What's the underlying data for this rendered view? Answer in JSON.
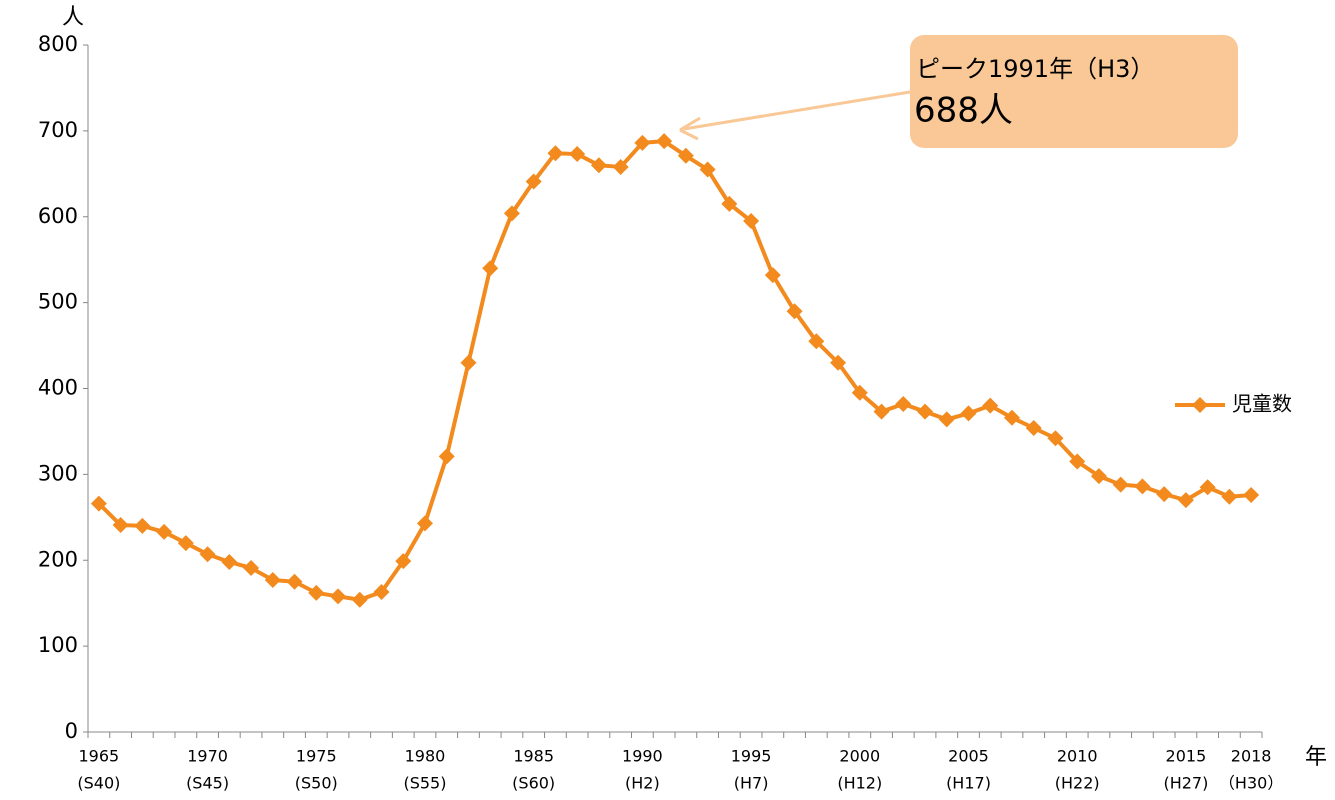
{
  "chart_data": {
    "type": "line",
    "y_axis_label": "人",
    "x_axis_label": "年",
    "categories": [
      "1965",
      null,
      null,
      null,
      null,
      "1970",
      null,
      null,
      null,
      null,
      "1975",
      null,
      null,
      null,
      null,
      "1980",
      null,
      null,
      null,
      null,
      "1985",
      null,
      null,
      null,
      null,
      "1990",
      null,
      null,
      null,
      null,
      "1995",
      null,
      null,
      null,
      null,
      "2000",
      null,
      null,
      null,
      null,
      "2005",
      null,
      null,
      null,
      null,
      "2010",
      null,
      null,
      null,
      null,
      "2015",
      null,
      null,
      "2018"
    ],
    "category_sublabels": [
      "(S40)",
      null,
      null,
      null,
      null,
      "(S45)",
      null,
      null,
      null,
      null,
      "(S50)",
      null,
      null,
      null,
      null,
      "(S55)",
      null,
      null,
      null,
      null,
      "(S60)",
      null,
      null,
      null,
      null,
      "(H2)",
      null,
      null,
      null,
      null,
      "(H7)",
      null,
      null,
      null,
      null,
      "(H12)",
      null,
      null,
      null,
      null,
      "(H17)",
      null,
      null,
      null,
      null,
      "(H22)",
      null,
      null,
      null,
      null,
      "(H27)",
      null,
      null,
      "（H30）"
    ],
    "series": [
      {
        "name": "児童数",
        "color": "#f28a1e",
        "values": [
          266,
          241,
          240,
          233,
          220,
          207,
          198,
          191,
          177,
          175,
          162,
          158,
          154,
          163,
          199,
          243,
          321,
          430,
          540,
          604,
          641,
          674,
          673,
          660,
          658,
          686,
          688,
          671,
          655,
          615,
          595,
          532,
          490,
          455,
          430,
          395,
          373,
          382,
          373,
          364,
          371,
          380,
          366,
          354,
          342,
          315,
          298,
          288,
          286,
          277,
          270,
          285,
          274,
          276
        ]
      }
    ],
    "ylim": [
      0,
      800
    ],
    "yticks": [
      0,
      100,
      200,
      300,
      400,
      500,
      600,
      700,
      800
    ],
    "legend": "right",
    "annotations": [
      {
        "line1": "ピーク1991年（H3）",
        "line2": "688人",
        "color": "#f9c896"
      }
    ]
  }
}
